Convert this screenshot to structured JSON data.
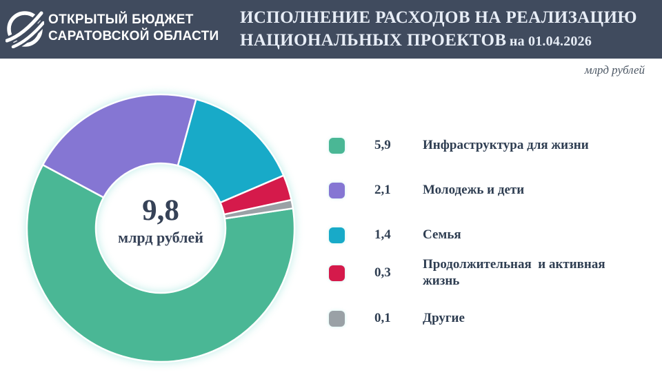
{
  "header": {
    "bg_color": "#404b5e",
    "logo": {
      "line1": "ОТКРЫТЫЙ БЮДЖЕТ",
      "line2": "САРАТОВСКОЙ ОБЛАСТИ"
    },
    "title_line1": "ИСПОЛНЕНИЕ РАСХОДОВ НА РЕАЛИЗАЦИЮ",
    "title_line2": "НАЦИОНАЛЬНЫХ ПРОЕКТОВ",
    "title_date": "на 01.04.2026"
  },
  "units_note": "млрд рублей",
  "chart_data": {
    "type": "pie",
    "subtype": "donut",
    "title": "ИСПОЛНЕНИЕ РАСХОДОВ НА РЕАЛИЗАЦИЮ НАЦИОНАЛЬНЫХ ПРОЕКТОВ на 01.04.2026",
    "units": "млрд рублей",
    "total": 9.8,
    "center": {
      "value": "9,8",
      "unit": "млрд рублей"
    },
    "start_angle_deg": 81.5,
    "legend_position": "right",
    "slices": [
      {
        "label": "Инфраструктура для жизни",
        "value": 5.9,
        "display": "5,9",
        "color": "#4ab795"
      },
      {
        "label": "Молодежь и дети",
        "value": 2.1,
        "display": "2,1",
        "color": "#8576d3"
      },
      {
        "label": "Семья",
        "value": 1.4,
        "display": "1,4",
        "color": "#18aac8"
      },
      {
        "label": "Продолжительная  и активная жизнь",
        "value": 0.3,
        "display": "0,3",
        "color": "#d51a4b"
      },
      {
        "label": "Другие",
        "value": 0.1,
        "display": "0,1",
        "color": "#9aa1a6"
      }
    ]
  }
}
